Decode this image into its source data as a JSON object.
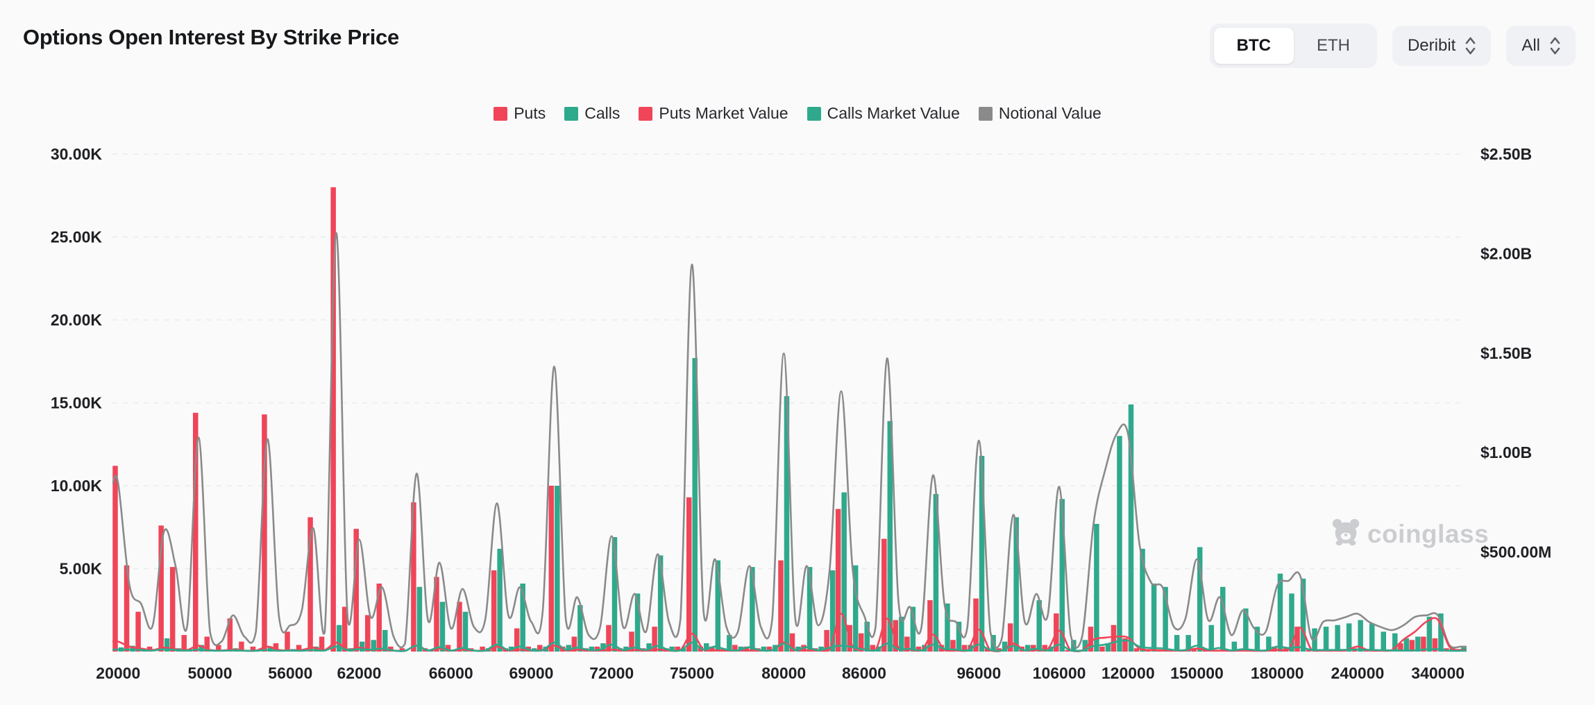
{
  "header": {
    "title": "Options Open Interest By Strike Price",
    "coin_toggle": {
      "options": [
        "BTC",
        "ETH"
      ],
      "selected": "BTC"
    },
    "exchange_dropdown": {
      "value": "Deribit"
    },
    "expiry_dropdown": {
      "value": "All"
    }
  },
  "watermark": {
    "text": "coinglass"
  },
  "colors": {
    "puts": "#f04558",
    "calls": "#2fa98c",
    "notional": "#8a8a8a",
    "axis_text": "#1f2023",
    "grid": "#eaebee",
    "background": "#fafafb"
  },
  "chart_data": {
    "type": "bar",
    "subtype": "grouped bars + smoothed lines, dual y-axis",
    "title": "Options Open Interest By Strike Price",
    "legend_position": "top center",
    "grid": "horizontal dashed lines, left axis ticks",
    "y_axis_left": {
      "ticks": [
        "30.00K",
        "25.00K",
        "20.00K",
        "15.00K",
        "10.00K",
        "5.00K"
      ],
      "min": 0,
      "max": 30000,
      "unit": "contracts"
    },
    "y_axis_right": {
      "ticks": [
        "$2.50B",
        "$2.00B",
        "$1.50B",
        "$1.00B",
        "$500.00M"
      ],
      "min": 0,
      "max_musd": 2500,
      "unit": "USD"
    },
    "x_axis": {
      "visible_tick_labels": [
        {
          "index": 0,
          "label": "20000"
        },
        {
          "index": 8,
          "label": "50000"
        },
        {
          "index": 15,
          "label": "56000"
        },
        {
          "index": 21,
          "label": "62000"
        },
        {
          "index": 29,
          "label": "66000"
        },
        {
          "index": 36,
          "label": "69000"
        },
        {
          "index": 43,
          "label": "72000"
        },
        {
          "index": 50,
          "label": "75000"
        },
        {
          "index": 58,
          "label": "80000"
        },
        {
          "index": 65,
          "label": "86000"
        },
        {
          "index": 75,
          "label": "96000"
        },
        {
          "index": 82,
          "label": "106000"
        },
        {
          "index": 88,
          "label": "120000"
        },
        {
          "index": 94,
          "label": "150000"
        },
        {
          "index": 101,
          "label": "180000"
        },
        {
          "index": 108,
          "label": "240000"
        },
        {
          "index": 115,
          "label": "340000"
        }
      ]
    },
    "series": [
      {
        "name": "Puts",
        "type": "bar",
        "axis": "left",
        "color": "#f04558",
        "values": [
          11200,
          5200,
          2400,
          300,
          7600,
          5100,
          1000,
          14400,
          900,
          400,
          2000,
          600,
          300,
          14300,
          500,
          1200,
          400,
          8100,
          900,
          28000,
          2700,
          7400,
          2200,
          4100,
          300,
          200,
          9000,
          200,
          4500,
          400,
          3000,
          200,
          300,
          4900,
          200,
          1400,
          300,
          400,
          10000,
          300,
          900,
          200,
          300,
          1600,
          200,
          1200,
          200,
          1500,
          200,
          300,
          9300,
          300,
          300,
          200,
          400,
          300,
          200,
          300,
          5500,
          1100,
          400,
          200,
          1300,
          8600,
          1600,
          1100,
          400,
          6800,
          1900,
          900,
          300,
          3100,
          400,
          700,
          400,
          3200,
          200,
          200,
          1700,
          300,
          400,
          400,
          2300,
          100,
          100,
          1500,
          300,
          1600,
          800,
          200,
          100,
          100,
          100,
          100,
          200,
          100,
          100,
          100,
          100,
          100,
          100,
          300,
          200,
          1500,
          100,
          100,
          100,
          100,
          200,
          100,
          100,
          100,
          500,
          700,
          900,
          800,
          200,
          100
        ]
      },
      {
        "name": "Calls",
        "type": "bar",
        "axis": "left",
        "color": "#2fa98c",
        "values": [
          250,
          350,
          100,
          0,
          800,
          200,
          100,
          400,
          0,
          0,
          200,
          0,
          0,
          300,
          0,
          150,
          0,
          300,
          0,
          1600,
          200,
          600,
          700,
          1300,
          100,
          0,
          3900,
          100,
          3000,
          100,
          2400,
          100,
          200,
          6200,
          300,
          4100,
          200,
          300,
          10000,
          400,
          2800,
          300,
          500,
          6900,
          300,
          3500,
          500,
          5800,
          300,
          200,
          17700,
          500,
          5500,
          1000,
          300,
          5100,
          300,
          400,
          15400,
          300,
          5100,
          300,
          4900,
          9600,
          5200,
          1800,
          300,
          13900,
          2100,
          2700,
          400,
          9500,
          2900,
          1800,
          400,
          11800,
          1000,
          600,
          8100,
          400,
          3100,
          300,
          9200,
          700,
          700,
          7700,
          500,
          13000,
          14900,
          6200,
          4100,
          3900,
          1000,
          1000,
          6300,
          1600,
          3900,
          600,
          2600,
          1500,
          900,
          4700,
          3500,
          4400,
          1400,
          1500,
          1600,
          1700,
          1900,
          1700,
          1200,
          1100,
          800,
          900,
          2100,
          2300,
          300,
          300
        ]
      },
      {
        "name": "Puts Market Value",
        "type": "line",
        "axis": "right",
        "unit": "$M",
        "color": "#f04558",
        "values": [
          50,
          25,
          15,
          8,
          20,
          12,
          8,
          30,
          8,
          5,
          10,
          5,
          5,
          25,
          8,
          6,
          8,
          20,
          8,
          45,
          10,
          20,
          8,
          10,
          5,
          4,
          30,
          6,
          15,
          5,
          10,
          5,
          5,
          25,
          6,
          10,
          5,
          8,
          30,
          6,
          10,
          5,
          5,
          10,
          5,
          8,
          5,
          10,
          5,
          8,
          90,
          10,
          6,
          5,
          5,
          6,
          5,
          8,
          45,
          10,
          6,
          5,
          10,
          190,
          25,
          12,
          6,
          165,
          20,
          10,
          6,
          85,
          8,
          6,
          5,
          110,
          6,
          5,
          40,
          6,
          8,
          10,
          105,
          6,
          5,
          60,
          70,
          75,
          70,
          15,
          8,
          6,
          5,
          5,
          15,
          5,
          5,
          4,
          5,
          4,
          4,
          8,
          10,
          120,
          8,
          5,
          5,
          6,
          25,
          6,
          5,
          8,
          60,
          100,
          150,
          160,
          25,
          8
        ]
      },
      {
        "name": "Calls Market Value",
        "type": "line",
        "axis": "right",
        "unit": "$M",
        "color": "#2fa98c",
        "values": [
          10,
          10,
          8,
          5,
          12,
          8,
          5,
          10,
          5,
          4,
          6,
          4,
          4,
          8,
          4,
          5,
          4,
          8,
          5,
          25,
          8,
          12,
          10,
          15,
          5,
          4,
          30,
          6,
          22,
          5,
          18,
          5,
          6,
          35,
          8,
          25,
          6,
          8,
          45,
          10,
          20,
          8,
          10,
          35,
          8,
          20,
          8,
          28,
          8,
          6,
          45,
          10,
          25,
          10,
          6,
          22,
          6,
          8,
          40,
          8,
          22,
          6,
          20,
          30,
          22,
          10,
          6,
          40,
          12,
          14,
          6,
          35,
          14,
          10,
          6,
          35,
          8,
          6,
          28,
          6,
          14,
          6,
          35,
          6,
          6,
          28,
          35,
          50,
          55,
          25,
          18,
          16,
          8,
          8,
          30,
          10,
          18,
          6,
          12,
          8,
          6,
          25,
          18,
          22,
          8,
          8,
          8,
          9,
          10,
          9,
          7,
          6,
          5,
          6,
          11,
          12,
          4,
          4
        ]
      },
      {
        "name": "Notional Value",
        "type": "line",
        "axis": "right",
        "unit": "$M",
        "color": "#8a8a8a",
        "values": [
          845,
          330,
          240,
          130,
          605,
          430,
          125,
          1076,
          100,
          50,
          182,
          75,
          100,
          1068,
          182,
          132,
          207,
          620,
          100,
          2103,
          165,
          563,
          174,
          323,
          75,
          41,
          894,
          157,
          447,
          116,
          315,
          124,
          166,
          745,
          182,
          323,
          149,
          207,
          1432,
          166,
          273,
          83,
          124,
          580,
          124,
          290,
          100,
          489,
          149,
          166,
          1945,
          207,
          464,
          124,
          100,
          430,
          124,
          166,
          1498,
          166,
          430,
          132,
          414,
          1308,
          414,
          182,
          124,
          1473,
          248,
          224,
          124,
          886,
          240,
          149,
          124,
          1060,
          100,
          66,
          687,
          149,
          290,
          182,
          828,
          83,
          75,
          646,
          911,
          1093,
          1093,
          538,
          348,
          323,
          124,
          166,
          464,
          157,
          273,
          83,
          207,
          116,
          100,
          331,
          356,
          381,
          66,
          149,
          157,
          174,
          190,
          149,
          124,
          108,
          132,
          174,
          182,
          182,
          33,
          25
        ]
      }
    ]
  }
}
